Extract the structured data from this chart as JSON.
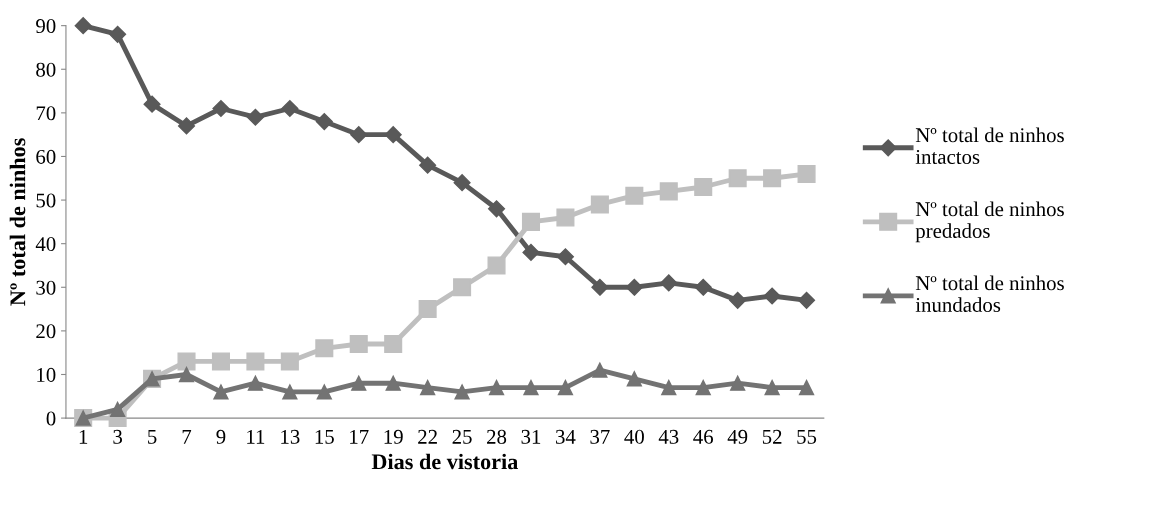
{
  "chart_data": {
    "type": "line",
    "xlabel": "Dias de vistoria",
    "ylabel": "Nº total de ninhos",
    "categories": [
      "1",
      "3",
      "5",
      "7",
      "9",
      "11",
      "13",
      "15",
      "17",
      "19",
      "22",
      "25",
      "28",
      "31",
      "34",
      "37",
      "40",
      "43",
      "46",
      "49",
      "52",
      "55"
    ],
    "series": [
      {
        "name": "Nº total de ninhos\nintactos",
        "color": "#595959",
        "marker": "diamond",
        "values": [
          90,
          88,
          72,
          67,
          71,
          69,
          71,
          68,
          65,
          65,
          58,
          54,
          48,
          38,
          37,
          30,
          30,
          31,
          30,
          27,
          28,
          27
        ]
      },
      {
        "name": "Nº total de ninhos\npredados",
        "color": "#bfbfbf",
        "marker": "square",
        "values": [
          0,
          0,
          9,
          13,
          13,
          13,
          13,
          16,
          17,
          17,
          25,
          30,
          35,
          45,
          46,
          49,
          51,
          52,
          53,
          55,
          55,
          56
        ]
      },
      {
        "name": "Nº total de ninhos\ninundados",
        "color": "#737373",
        "marker": "triangle",
        "values": [
          0,
          2,
          9,
          10,
          6,
          8,
          6,
          6,
          8,
          8,
          7,
          6,
          7,
          7,
          7,
          11,
          9,
          7,
          7,
          8,
          7,
          7
        ]
      }
    ],
    "ylim": [
      0,
      90
    ],
    "yticks": [
      0,
      10,
      20,
      30,
      40,
      50,
      60,
      70,
      80,
      90
    ],
    "grid": false,
    "legend": "right",
    "line_style": "solid"
  }
}
